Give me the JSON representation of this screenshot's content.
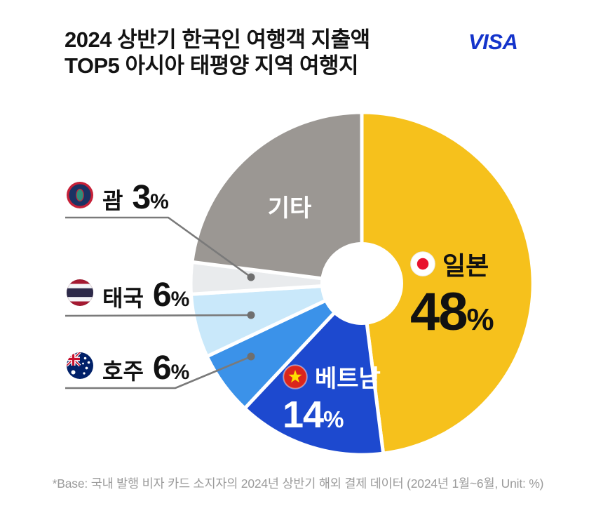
{
  "header": {
    "title_line1": "2024 상반기 한국인 여행객 지출액",
    "title_line2": "TOP5 아시아 태평양 지역 여행지",
    "brand": "VISA"
  },
  "chart_data": {
    "type": "pie",
    "title": "2024 상반기 한국인 여행객 지출액 TOP5 아시아 태평양 지역 여행지",
    "unit": "%",
    "donut": true,
    "start_angle_deg": 0,
    "direction": "clockwise",
    "legend_position": "left-and-on-slice",
    "slices": [
      {
        "id": "japan",
        "label": "일본",
        "value": 48,
        "color": "#F6C11C"
      },
      {
        "id": "vietnam",
        "label": "베트남",
        "value": 14,
        "color": "#1D49CF"
      },
      {
        "id": "australia",
        "label": "호주",
        "value": 6,
        "color": "#3B92E9"
      },
      {
        "id": "thailand",
        "label": "태국",
        "value": 6,
        "color": "#C9E8FA"
      },
      {
        "id": "guam",
        "label": "괌",
        "value": 3,
        "color": "#E9EBED"
      },
      {
        "id": "others",
        "label": "기타",
        "value": 23,
        "color": "#9B9793"
      }
    ]
  },
  "icons": {
    "japan_flag": "japan-flag-icon",
    "vietnam_flag": "vietnam-flag-icon",
    "guam_flag": "guam-flag-icon",
    "thailand_flag": "thailand-flag-icon",
    "australia_flag": "australia-flag-icon"
  },
  "colors": {
    "brand_blue": "#1434CB",
    "title_text": "#131313",
    "note_text": "#9B9B9B",
    "leader_line": "#7A7A7A"
  },
  "footer": {
    "note": "*Base: 국내 발행 비자 카드 소지자의 2024년 상반기 해외 결제 데이터 (2024년 1월~6월, Unit: %)"
  }
}
